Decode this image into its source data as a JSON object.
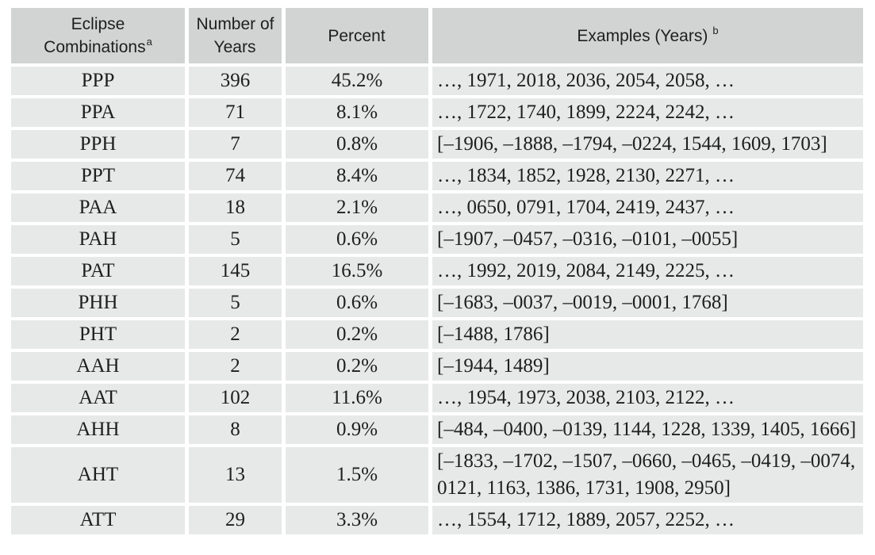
{
  "colors": {
    "header_bg": "#d2d4d4",
    "row_bg": "#e7e8e8",
    "text": "#1e1e1e",
    "gap": "#ffffff"
  },
  "table": {
    "columns": [
      {
        "label": "Eclipse Combinations",
        "sup": "a"
      },
      {
        "label": "Number of Years",
        "sup": ""
      },
      {
        "label": "Percent",
        "sup": ""
      },
      {
        "label": "Examples (Years)",
        "sup": "b"
      }
    ],
    "rows": [
      {
        "combination": "PPP",
        "years": "396",
        "percent": "45.2%",
        "examples": "…, 1971, 2018, 2036, 2054, 2058, …"
      },
      {
        "combination": "PPA",
        "years": "71",
        "percent": "8.1%",
        "examples": "…, 1722, 1740, 1899, 2224, 2242, …"
      },
      {
        "combination": "PPH",
        "years": "7",
        "percent": "0.8%",
        "examples": "[–1906, –1888, –1794, –0224, 1544, 1609, 1703]"
      },
      {
        "combination": "PPT",
        "years": "74",
        "percent": "8.4%",
        "examples": "…, 1834, 1852, 1928, 2130, 2271, …"
      },
      {
        "combination": "PAA",
        "years": "18",
        "percent": "2.1%",
        "examples": "…, 0650, 0791, 1704, 2419, 2437, …"
      },
      {
        "combination": "PAH",
        "years": "5",
        "percent": "0.6%",
        "examples": "[–1907, –0457, –0316, –0101, –0055]"
      },
      {
        "combination": "PAT",
        "years": "145",
        "percent": "16.5%",
        "examples": "…, 1992, 2019, 2084, 2149, 2225, …"
      },
      {
        "combination": "PHH",
        "years": "5",
        "percent": "0.6%",
        "examples": "[–1683, –0037, –0019, –0001, 1768]"
      },
      {
        "combination": "PHT",
        "years": "2",
        "percent": "0.2%",
        "examples": "[–1488, 1786]"
      },
      {
        "combination": "AAH",
        "years": "2",
        "percent": "0.2%",
        "examples": "[–1944, 1489]"
      },
      {
        "combination": "AAT",
        "years": "102",
        "percent": "11.6%",
        "examples": "…, 1954, 1973, 2038, 2103, 2122, …"
      },
      {
        "combination": "AHH",
        "years": "8",
        "percent": "0.9%",
        "examples": "[–484, –0400, –0139, 1144, 1228, 1339, 1405, 1666]"
      },
      {
        "combination": "AHT",
        "years": "13",
        "percent": "1.5%",
        "examples": "[–1833, –1702, –1507, –0660, –0465, –0419, –0074, 0121, 1163, 1386, 1731, 1908, 2950]"
      },
      {
        "combination": "ATT",
        "years": "29",
        "percent": "3.3%",
        "examples": "…, 1554, 1712, 1889, 2057, 2252, …"
      }
    ]
  }
}
